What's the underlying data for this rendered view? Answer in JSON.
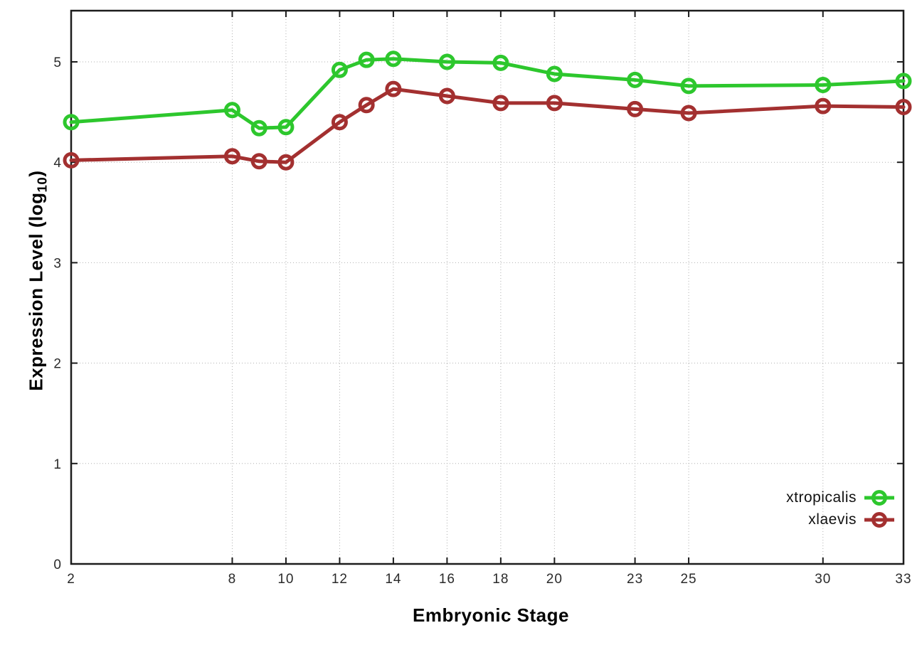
{
  "figure": {
    "background": "#ffffff",
    "xlabel": "Embryonic Stage",
    "ylabel_parts": {
      "pre": "Expression Level (log",
      "sub": "10",
      "post": ")"
    }
  },
  "chart_data": {
    "type": "line",
    "title": "",
    "xlabel": "Embryonic Stage",
    "ylabel": "Expression Level (log10)",
    "x": [
      2,
      8,
      9,
      10,
      12,
      13,
      14,
      16,
      18,
      20,
      23,
      25,
      30,
      33
    ],
    "x_ticks": [
      2,
      8,
      10,
      12,
      14,
      16,
      18,
      20,
      23,
      25,
      30,
      33
    ],
    "y_ticks": [
      0,
      1,
      2,
      3,
      4,
      5
    ],
    "xlim": [
      2,
      33
    ],
    "ylim": [
      0,
      5.51
    ],
    "grid": true,
    "legend_position": "inside-right-bottom",
    "marker": "open-circle",
    "axis_color": "#1c1c1c",
    "grid_color": "#b0b0b0",
    "series": [
      {
        "name": "xtropicalis",
        "color": "#2dc72d",
        "values": [
          4.4,
          4.52,
          4.34,
          4.35,
          4.92,
          5.02,
          5.03,
          5.0,
          4.99,
          4.88,
          4.82,
          4.76,
          4.77,
          4.81
        ]
      },
      {
        "name": "xlaevis",
        "color": "#a33030",
        "values": [
          4.02,
          4.06,
          4.01,
          4.0,
          4.4,
          4.57,
          4.73,
          4.66,
          4.59,
          4.59,
          4.53,
          4.49,
          4.56,
          4.55
        ]
      }
    ]
  }
}
